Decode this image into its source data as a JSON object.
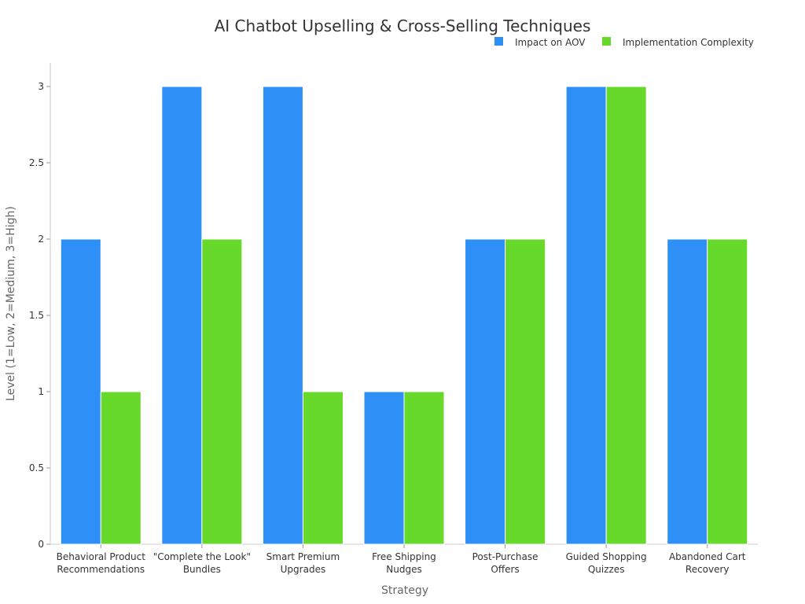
{
  "chart_data": {
    "type": "bar",
    "title": "AI Chatbot Upselling & Cross-Selling Techniques",
    "xlabel": "Strategy",
    "ylabel": "Level (1=Low, 2=Medium, 3=High)",
    "categories": [
      [
        "Behavioral Product",
        "Recommendations"
      ],
      [
        "\"Complete the Look\"",
        "Bundles"
      ],
      [
        "Smart Premium",
        "Upgrades"
      ],
      [
        "Free Shipping",
        "Nudges"
      ],
      [
        "Post-Purchase",
        "Offers"
      ],
      [
        "Guided Shopping",
        "Quizzes"
      ],
      [
        "Abandoned Cart",
        "Recovery"
      ]
    ],
    "series": [
      {
        "name": "Impact on AOV",
        "color": "#2E90F7",
        "values": [
          2,
          3,
          3,
          1,
          2,
          3,
          2
        ]
      },
      {
        "name": "Implementation Complexity",
        "color": "#66D92A",
        "values": [
          1,
          2,
          1,
          1,
          2,
          3,
          2
        ]
      }
    ],
    "ylim": [
      0,
      3
    ],
    "yticks": [
      "0",
      "0.5",
      "1",
      "1.5",
      "2",
      "2.5",
      "3"
    ],
    "grid": false,
    "legend_position": "top-right"
  }
}
